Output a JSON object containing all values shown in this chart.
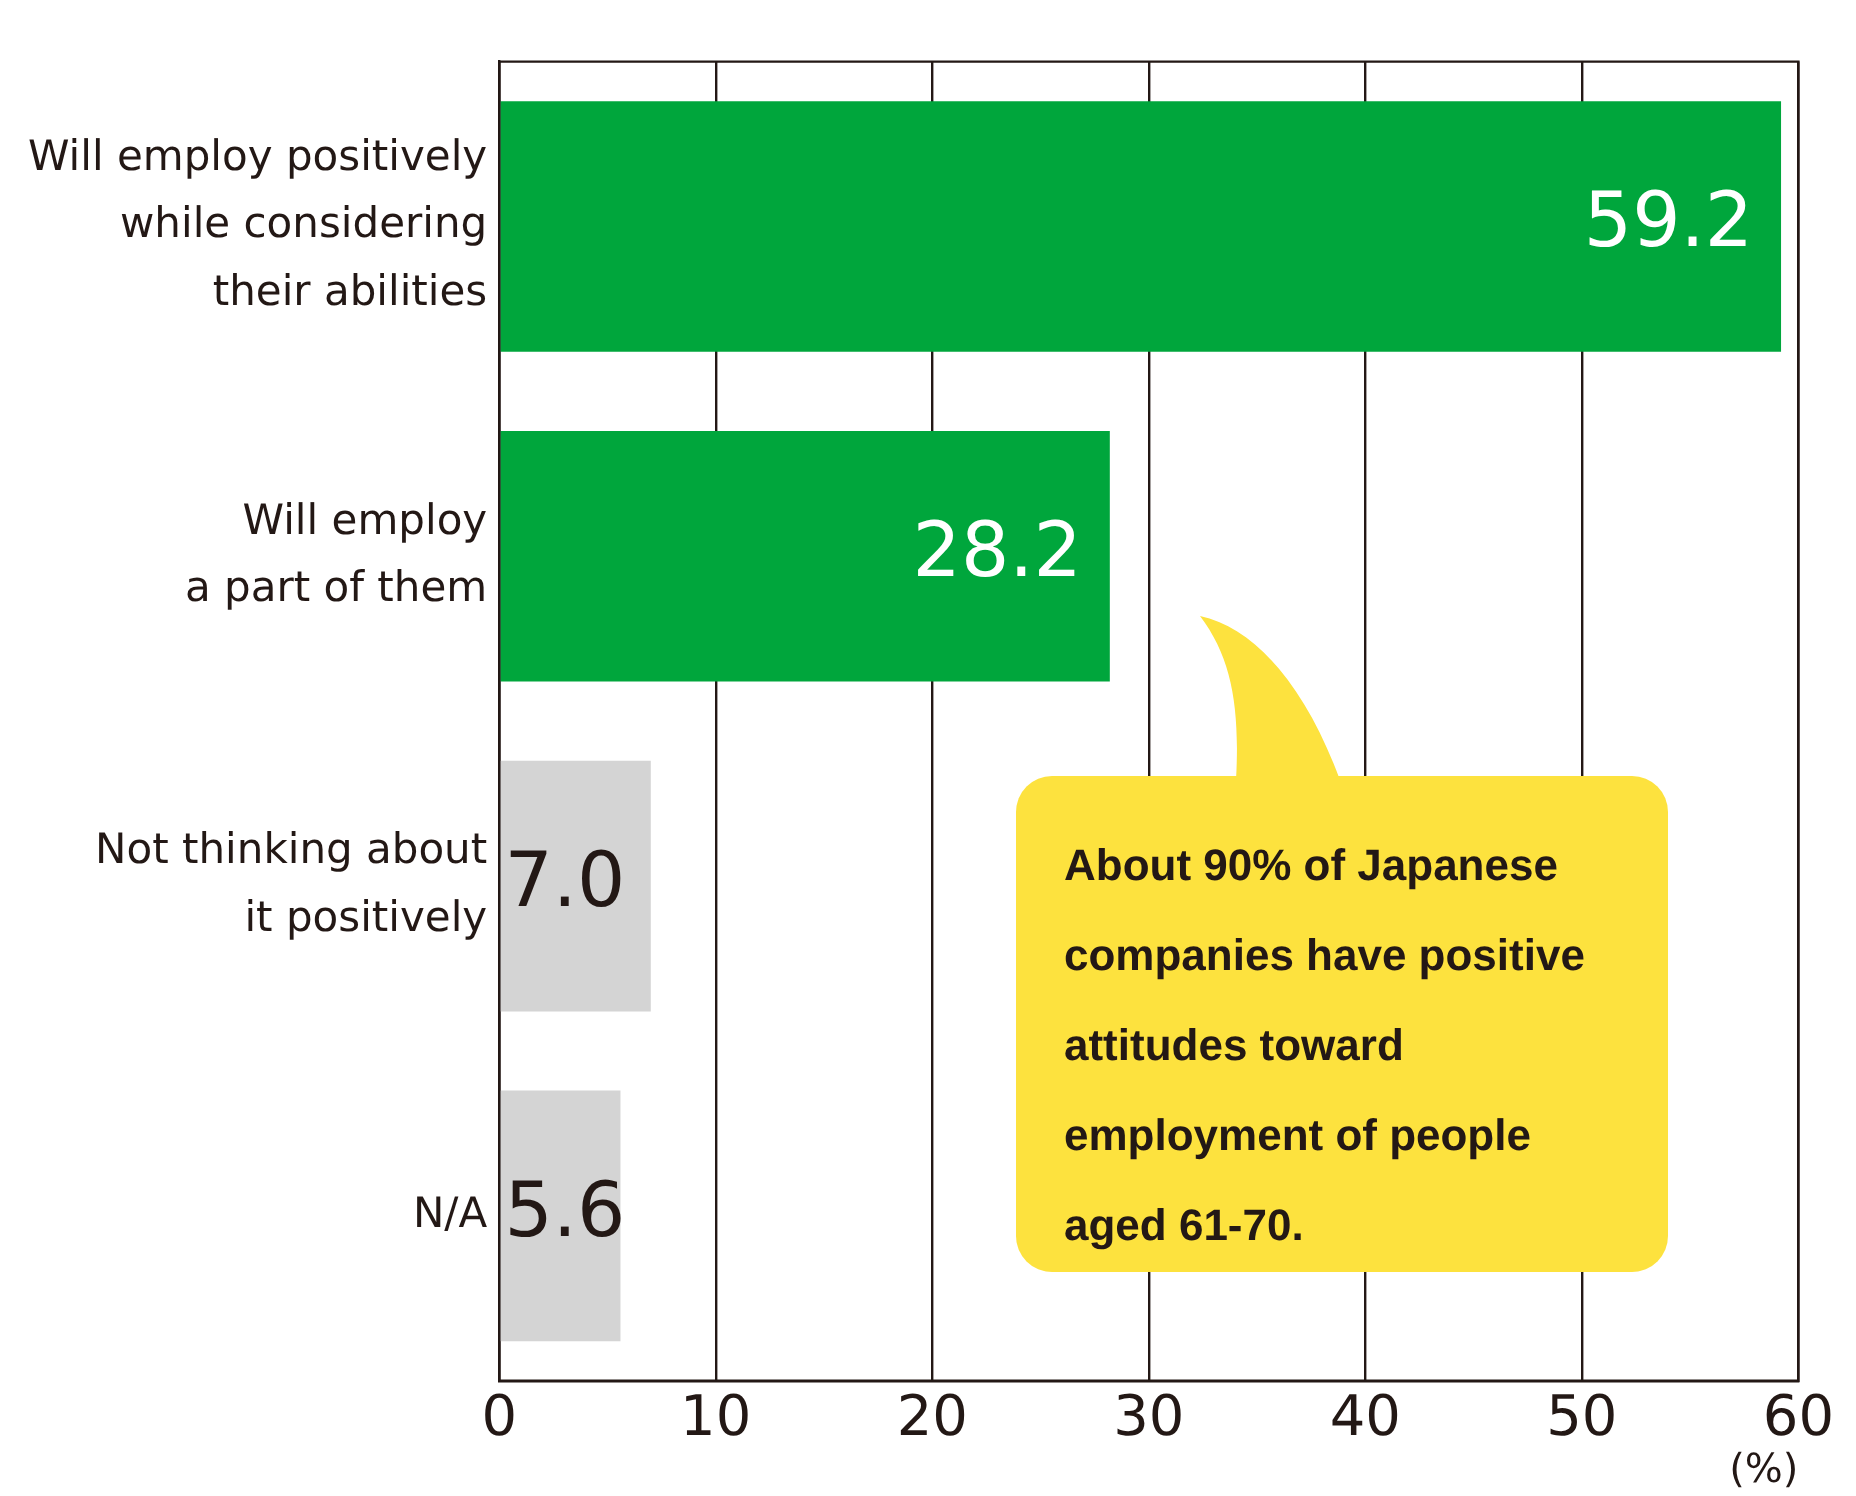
{
  "chart_data": {
    "type": "bar",
    "orientation": "horizontal",
    "categories": [
      "Will employ positively\nwhile considering\ntheir abilities",
      "Will employ\na part of them",
      "Not thinking about\nit positively",
      "N/A"
    ],
    "values": [
      59.2,
      28.2,
      7.0,
      5.6
    ],
    "colors": [
      "#00a63c",
      "#00a63c",
      "#d4d4d4",
      "#d4d4d4"
    ],
    "value_labels": [
      "59.2",
      "28.2",
      "7.0",
      "5.6"
    ],
    "xlabel": "(%)",
    "xlim": [
      0,
      60
    ],
    "xticks": [
      0,
      10,
      20,
      30,
      40,
      50,
      60
    ],
    "grid": "x",
    "legend": false,
    "annotations": [
      "About 90% of Japanese companies have positive attitudes toward employment of people aged 61-70."
    ]
  }
}
